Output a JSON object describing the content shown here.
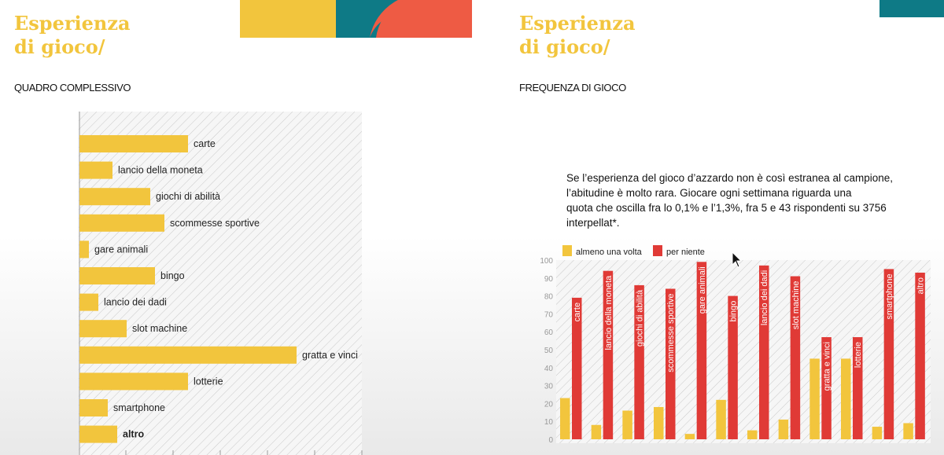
{
  "left_slide": {
    "title_line1": "Esperienza",
    "title_line2": "di gioco/",
    "subtitle": "QUADRO COMPLESSIVO"
  },
  "right_slide": {
    "title_line1": "Esperienza",
    "title_line2": "di gioco/",
    "subtitle": "FREQUENZA DI GIOCO",
    "description_lines": [
      "Se l’esperienza del gioco d’azzardo non è così estranea al campione,",
      "l’abitudine è molto rara. Giocare ogni settimana riguarda una",
      "quota che oscilla fra lo 0,1% e l’1,3%, fra 5 e 43 rispondenti su 3756",
      "interpellat*."
    ]
  },
  "colors": {
    "yellow": "#f2c53d",
    "red": "#e03a36",
    "teal": "#0e7a86",
    "coral": "#ee5b44",
    "hatch": "#c9c9c9"
  },
  "chart_data": [
    {
      "type": "bar",
      "orientation": "horizontal",
      "title": "",
      "categories": [
        "carte",
        "lancio della moneta",
        "giochi di abilità",
        "scommesse sportive",
        "gare animali",
        "bingo",
        "lancio dei dadi",
        "slot machine",
        "gratta e vinci",
        "lotterie",
        "smartphone",
        "altro"
      ],
      "values": [
        23,
        7,
        15,
        18,
        2,
        16,
        4,
        10,
        46,
        23,
        6,
        8
      ],
      "xlim": [
        0,
        60
      ],
      "grid": false,
      "background": "diagonal hatch",
      "series_color": "#f2c53d"
    },
    {
      "type": "bar",
      "orientation": "vertical",
      "title": "",
      "categories": [
        "carte",
        "lancio della moneta",
        "giochi di abilità",
        "scommesse sportive",
        "gare animali",
        "bingo",
        "lancio dei dadi",
        "slot machine",
        "gratta e vinci",
        "lotterie",
        "smartphone",
        "altro"
      ],
      "series": [
        {
          "name": "almeno una volta",
          "values": [
            23,
            8,
            16,
            18,
            3,
            22,
            5,
            11,
            45,
            45,
            7,
            9
          ],
          "color": "#f2c53d"
        },
        {
          "name": "per niente",
          "values": [
            79,
            94,
            86,
            84,
            99,
            80,
            97,
            91,
            57,
            57,
            95,
            93
          ],
          "color": "#e03a36"
        }
      ],
      "ylim": [
        0,
        100
      ],
      "yticks": [
        0,
        10,
        20,
        30,
        40,
        50,
        60,
        70,
        80,
        90,
        100
      ],
      "legend_position": "top-left",
      "grid": false,
      "background": "diagonal hatch"
    }
  ]
}
